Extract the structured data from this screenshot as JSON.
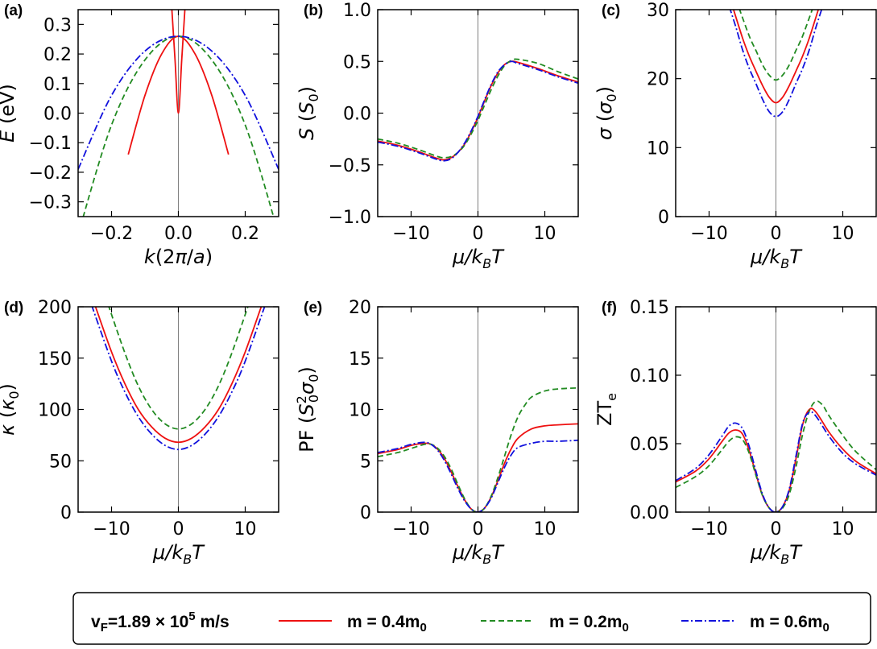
{
  "colors": {
    "red": "#ee1111",
    "green": "#228b22",
    "blue": "#1111dd",
    "zero_line": "#808080"
  },
  "legend": {
    "vf_label": "v",
    "vf_sub": "F",
    "vf_value": "=1.89 × 10",
    "vf_exp": "5",
    "vf_unit": " m/s",
    "entries": [
      {
        "text": "m  = 0.4m",
        "sub": "0",
        "color": "#ee1111",
        "dash": ""
      },
      {
        "text": "m  = 0.2m",
        "sub": "0",
        "color": "#228b22",
        "dash": "7,4"
      },
      {
        "text": "m  = 0.6m",
        "sub": "0",
        "color": "#1111dd",
        "dash": "9,3,2,3"
      }
    ]
  },
  "chart_data": [
    {
      "panel": "(a)",
      "type": "line",
      "xlabel": "k(2π/a)",
      "ylabel": "E (eV)",
      "xlim": [
        -0.3,
        0.3
      ],
      "ylim": [
        -0.35,
        0.35
      ],
      "xticks": [
        -0.2,
        0.0,
        0.2
      ],
      "xticklabels": [
        "−0.2",
        "0.0",
        "0.2"
      ],
      "yticks": [
        0.3,
        0.2,
        0.1,
        0.0,
        -0.1,
        -0.2,
        -0.3
      ],
      "yticklabels": [
        "0.3",
        "0.2",
        "0.1",
        "0.0",
        "−0.1",
        "−0.2",
        "−0.3"
      ],
      "series": [
        {
          "color": "red",
          "dash": "",
          "x": [
            -0.15,
            -0.1,
            -0.05,
            0,
            0.05,
            0.1,
            0.15
          ],
          "y": [
            -0.14,
            0.06,
            0.2,
            0.26,
            0.2,
            0.06,
            -0.14
          ]
        },
        {
          "color": "red",
          "dash": "",
          "x": [
            -0.03,
            -0.02,
            -0.01,
            0,
            0.01,
            0.02,
            0.03
          ],
          "y": [
            0.54,
            0.36,
            0.18,
            0.0,
            0.18,
            0.36,
            0.54
          ]
        },
        {
          "color": "green",
          "dash": "7,4",
          "x": [
            -0.3,
            -0.2,
            -0.1,
            0,
            0.1,
            0.2,
            0.3
          ],
          "y": [
            -0.41,
            -0.04,
            0.18,
            0.26,
            0.18,
            -0.04,
            -0.41
          ]
        },
        {
          "color": "blue",
          "dash": "9,3,2,3",
          "x": [
            -0.3,
            -0.2,
            -0.1,
            0,
            0.1,
            0.2,
            0.3
          ],
          "y": [
            -0.19,
            0.06,
            0.21,
            0.26,
            0.21,
            0.06,
            -0.19
          ]
        }
      ]
    },
    {
      "panel": "(b)",
      "type": "line",
      "xlabel": "μ/kBT",
      "ylabel": "S (S0)",
      "xlim": [
        -15,
        15
      ],
      "ylim": [
        -1.0,
        1.0
      ],
      "xticks": [
        -10,
        0,
        10
      ],
      "xticklabels": [
        "−10",
        "0",
        "10"
      ],
      "yticks": [
        1.0,
        0.5,
        0.0,
        -0.5,
        -1.0
      ],
      "yticklabels": [
        "1.0",
        "0.5",
        "0.0",
        "−0.5",
        "−1.0"
      ],
      "series": [
        {
          "color": "red",
          "dash": "",
          "x": [
            -15,
            -12,
            -9,
            -6,
            -5,
            -4,
            -3,
            -2,
            -1,
            0,
            1,
            2,
            3,
            4,
            5,
            6,
            9,
            12,
            15
          ],
          "y": [
            -0.27,
            -0.31,
            -0.37,
            -0.44,
            -0.45,
            -0.43,
            -0.38,
            -0.3,
            -0.18,
            -0.04,
            0.12,
            0.27,
            0.39,
            0.47,
            0.5,
            0.49,
            0.43,
            0.36,
            0.3
          ]
        },
        {
          "color": "green",
          "dash": "7,4",
          "x": [
            -15,
            -12,
            -9,
            -6,
            -5,
            -4,
            -3,
            -2,
            -1,
            0,
            1,
            2,
            3,
            4,
            5,
            6,
            9,
            12,
            15
          ],
          "y": [
            -0.25,
            -0.29,
            -0.35,
            -0.42,
            -0.43,
            -0.42,
            -0.38,
            -0.31,
            -0.2,
            -0.07,
            0.08,
            0.23,
            0.36,
            0.46,
            0.51,
            0.52,
            0.48,
            0.4,
            0.33
          ]
        },
        {
          "color": "blue",
          "dash": "9,3,2,3",
          "x": [
            -15,
            -12,
            -9,
            -6,
            -5,
            -4,
            -3,
            -2,
            -1,
            0,
            1,
            2,
            3,
            4,
            5,
            6,
            9,
            12,
            15
          ],
          "y": [
            -0.28,
            -0.32,
            -0.38,
            -0.45,
            -0.46,
            -0.44,
            -0.38,
            -0.29,
            -0.17,
            -0.03,
            0.13,
            0.28,
            0.4,
            0.47,
            0.5,
            0.48,
            0.42,
            0.35,
            0.29
          ]
        }
      ]
    },
    {
      "panel": "(c)",
      "type": "line",
      "xlabel": "μ/kBT",
      "ylabel": "σ (σ0)",
      "xlim": [
        -15,
        15
      ],
      "ylim": [
        0,
        30
      ],
      "xticks": [
        -10,
        0,
        10
      ],
      "xticklabels": [
        "−10",
        "0",
        "10"
      ],
      "yticks": [
        30,
        20,
        10,
        0
      ],
      "yticklabels": [
        "30",
        "20",
        "10",
        "0"
      ],
      "series": [
        {
          "color": "red",
          "dash": "",
          "x": [
            -6.5,
            -5,
            -4,
            -3,
            -2,
            -1,
            0,
            1,
            2,
            3,
            4,
            5,
            6.5
          ],
          "y": [
            30.5,
            25.9,
            23.3,
            21.1,
            19.0,
            17.3,
            16.5,
            17.3,
            19.0,
            21.1,
            23.3,
            25.9,
            30.5
          ]
        },
        {
          "color": "green",
          "dash": "7,4",
          "x": [
            -5.5,
            -4,
            -3,
            -2,
            -1,
            0,
            1,
            2,
            3,
            4,
            5.5
          ],
          "y": [
            30.2,
            26.2,
            24.1,
            22.0,
            20.5,
            19.8,
            20.5,
            22.0,
            24.1,
            26.2,
            30.2
          ]
        },
        {
          "color": "blue",
          "dash": "9,3,2,3",
          "x": [
            -7,
            -6,
            -5,
            -4,
            -3,
            -2,
            -1,
            0,
            1,
            2,
            3,
            4,
            5,
            6,
            7
          ],
          "y": [
            30.5,
            27.5,
            24.2,
            21.5,
            19.3,
            17.0,
            15.2,
            14.5,
            15.2,
            17.0,
            19.3,
            21.5,
            24.2,
            27.5,
            30.5
          ]
        }
      ]
    },
    {
      "panel": "(d)",
      "type": "line",
      "xlabel": "μ/kBT",
      "ylabel": "κ (κ0)",
      "xlim": [
        -15,
        15
      ],
      "ylim": [
        0,
        200
      ],
      "xticks": [
        -10,
        0,
        10
      ],
      "xticklabels": [
        "−10",
        "0",
        "10"
      ],
      "yticks": [
        200,
        150,
        100,
        50,
        0
      ],
      "yticklabels": [
        "200",
        "150",
        "100",
        "50",
        "0"
      ],
      "series": [
        {
          "color": "red",
          "dash": "",
          "x": [
            -12.5,
            -10,
            -8,
            -6,
            -4,
            -2,
            0,
            2,
            4,
            6,
            8,
            10,
            12.5
          ],
          "y": [
            202,
            156,
            125,
            100,
            83,
            72,
            68,
            72,
            83,
            100,
            125,
            156,
            202
          ]
        },
        {
          "color": "green",
          "dash": "7,4",
          "x": [
            -10.5,
            -8,
            -6,
            -4,
            -2,
            0,
            2,
            4,
            6,
            8,
            10.5
          ],
          "y": [
            202,
            155,
            123,
            100,
            86,
            81,
            86,
            100,
            123,
            155,
            202
          ]
        },
        {
          "color": "blue",
          "dash": "9,3,2,3",
          "x": [
            -13,
            -10,
            -8,
            -6,
            -4,
            -2,
            0,
            2,
            4,
            6,
            8,
            10,
            13
          ],
          "y": [
            202,
            147,
            117,
            93,
            76,
            65,
            61,
            65,
            76,
            93,
            117,
            147,
            202
          ]
        }
      ]
    },
    {
      "panel": "(e)",
      "type": "line",
      "xlabel": "μ/kBT",
      "ylabel": "PF (S0²σ0)",
      "xlim": [
        -15,
        15
      ],
      "ylim": [
        0,
        20
      ],
      "xticks": [
        -10,
        0,
        10
      ],
      "xticklabels": [
        "−10",
        "0",
        "10"
      ],
      "yticks": [
        20,
        15,
        10,
        5,
        0
      ],
      "yticklabels": [
        "20",
        "15",
        "10",
        "5",
        "0"
      ],
      "series": [
        {
          "color": "red",
          "dash": "",
          "x": [
            -15,
            -12,
            -10,
            -8,
            -7,
            -6,
            -5,
            -4,
            -3,
            -2,
            -1,
            0,
            1,
            2,
            3,
            4,
            5,
            6,
            8,
            10,
            12,
            15
          ],
          "y": [
            5.7,
            6.1,
            6.5,
            6.7,
            6.6,
            6.1,
            5.2,
            3.9,
            2.5,
            1.2,
            0.3,
            0.0,
            0.4,
            1.5,
            3.1,
            4.8,
            6.2,
            7.2,
            8.1,
            8.4,
            8.5,
            8.6
          ]
        },
        {
          "color": "green",
          "dash": "7,4",
          "x": [
            -15,
            -12,
            -10,
            -8,
            -7,
            -6,
            -5,
            -4,
            -3,
            -2,
            -1,
            0,
            1,
            2,
            3,
            4,
            5,
            6,
            7,
            8,
            10,
            12,
            15
          ],
          "y": [
            5.4,
            5.8,
            6.2,
            6.6,
            6.6,
            6.2,
            5.4,
            4.2,
            2.7,
            1.3,
            0.3,
            0.0,
            0.4,
            1.6,
            3.4,
            5.5,
            7.6,
            9.3,
            10.4,
            11.2,
            11.8,
            12.0,
            12.1
          ]
        },
        {
          "color": "blue",
          "dash": "9,3,2,3",
          "x": [
            -15,
            -12,
            -10,
            -8,
            -7,
            -6,
            -5,
            -4,
            -3,
            -2,
            -1,
            0,
            1,
            2,
            3,
            4,
            5,
            6,
            8,
            10,
            12,
            15
          ],
          "y": [
            5.8,
            6.2,
            6.6,
            6.8,
            6.6,
            6.0,
            5.0,
            3.7,
            2.3,
            1.1,
            0.3,
            0.0,
            0.4,
            1.4,
            2.9,
            4.4,
            5.6,
            6.3,
            6.7,
            6.9,
            6.9,
            7.0
          ]
        }
      ]
    },
    {
      "panel": "(f)",
      "type": "line",
      "xlabel": "μ/kBT",
      "ylabel": "ZTe",
      "xlim": [
        -15,
        15
      ],
      "ylim": [
        0,
        0.15
      ],
      "xticks": [
        -10,
        0,
        10
      ],
      "xticklabels": [
        "−10",
        "0",
        "10"
      ],
      "yticks": [
        0.15,
        0.1,
        0.05,
        0.0
      ],
      "yticklabels": [
        "0.15",
        "0.10",
        "0.05",
        "0.00"
      ],
      "series": [
        {
          "color": "red",
          "dash": "",
          "x": [
            -15,
            -12,
            -10,
            -8,
            -7,
            -6,
            -5,
            -4,
            -3,
            -2,
            -1,
            0,
            1,
            2,
            3,
            4,
            5,
            6,
            8,
            10,
            12,
            15
          ],
          "y": [
            0.022,
            0.03,
            0.039,
            0.052,
            0.058,
            0.06,
            0.057,
            0.045,
            0.028,
            0.012,
            0.003,
            0.0,
            0.004,
            0.016,
            0.039,
            0.064,
            0.075,
            0.073,
            0.058,
            0.046,
            0.037,
            0.028
          ]
        },
        {
          "color": "green",
          "dash": "7,4",
          "x": [
            -15,
            -12,
            -10,
            -8,
            -7,
            -6,
            -5,
            -4,
            -3,
            -2,
            -1,
            0,
            1,
            2,
            3,
            4,
            5,
            6,
            7,
            8,
            10,
            12,
            15
          ],
          "y": [
            0.018,
            0.026,
            0.034,
            0.046,
            0.052,
            0.055,
            0.053,
            0.043,
            0.027,
            0.012,
            0.003,
            0.0,
            0.003,
            0.013,
            0.033,
            0.057,
            0.074,
            0.081,
            0.078,
            0.07,
            0.056,
            0.044,
            0.031
          ]
        },
        {
          "color": "blue",
          "dash": "9,3,2,3",
          "x": [
            -15,
            -12,
            -10,
            -8,
            -7,
            -6,
            -5,
            -4,
            -3,
            -2,
            -1,
            0,
            1,
            2,
            3,
            4,
            5,
            6,
            8,
            10,
            12,
            15
          ],
          "y": [
            0.023,
            0.032,
            0.042,
            0.056,
            0.063,
            0.065,
            0.061,
            0.048,
            0.03,
            0.013,
            0.003,
            0.0,
            0.004,
            0.017,
            0.041,
            0.065,
            0.073,
            0.07,
            0.055,
            0.043,
            0.035,
            0.027
          ]
        }
      ]
    }
  ]
}
